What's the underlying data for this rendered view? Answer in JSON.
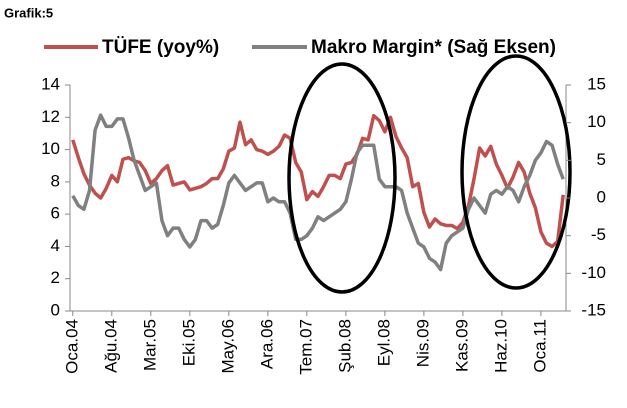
{
  "chart_data": {
    "type": "line",
    "title": "Grafik:5",
    "categories": [
      "Oca.04",
      null,
      null,
      null,
      null,
      null,
      null,
      "Ağu.04",
      null,
      null,
      null,
      null,
      null,
      null,
      "Mar.05",
      null,
      null,
      null,
      null,
      null,
      null,
      "Eki.05",
      null,
      null,
      null,
      null,
      null,
      null,
      "May.06",
      null,
      null,
      null,
      null,
      null,
      null,
      "Ara.06",
      null,
      null,
      null,
      null,
      null,
      null,
      "Tem.07",
      null,
      null,
      null,
      null,
      null,
      null,
      "Şub.08",
      null,
      null,
      null,
      null,
      null,
      null,
      "Eyl.08",
      null,
      null,
      null,
      null,
      null,
      null,
      "Nis.09",
      null,
      null,
      null,
      null,
      null,
      null,
      "Kas.09",
      null,
      null,
      null,
      null,
      null,
      null,
      "Haz.10",
      null,
      null,
      null,
      null,
      null,
      null,
      "Oca.11",
      null,
      null,
      null,
      null
    ],
    "series": [
      {
        "name": "TÜFE (yoy%)",
        "color": "#c0504d",
        "axis": "y",
        "values": [
          10.6,
          9.5,
          8.5,
          7.8,
          7.3,
          7.0,
          7.6,
          8.4,
          8.0,
          9.4,
          9.5,
          9.3,
          9.2,
          8.7,
          7.9,
          8.2,
          8.7,
          9.0,
          7.8,
          7.9,
          8.0,
          7.5,
          7.6,
          7.7,
          7.9,
          8.2,
          8.2,
          8.8,
          9.9,
          10.1,
          11.7,
          10.3,
          10.6,
          10.0,
          9.9,
          9.7,
          9.9,
          10.2,
          10.9,
          10.7,
          9.2,
          8.6,
          6.9,
          7.4,
          7.1,
          7.7,
          8.4,
          8.4,
          8.2,
          9.1,
          9.2,
          9.7,
          10.7,
          10.6,
          12.1,
          11.8,
          11.1,
          12.0,
          10.8,
          10.1,
          9.5,
          7.7,
          7.9,
          6.1,
          5.2,
          5.7,
          5.4,
          5.3,
          5.3,
          5.1,
          5.5,
          6.5,
          8.2,
          10.1,
          9.6,
          10.2,
          9.1,
          8.4,
          7.6,
          8.3,
          9.2,
          8.6,
          7.3,
          6.4,
          4.9,
          4.2,
          4.0,
          4.3,
          7.2
        ]
      },
      {
        "name": "Makro Margin* (Sağ Eksen)",
        "color": "#808080",
        "axis": "y2",
        "values": [
          0.3,
          -1,
          -1.5,
          1,
          9,
          11,
          9.5,
          9.5,
          10.5,
          10.5,
          8,
          5,
          3,
          1,
          1.5,
          2,
          -3,
          -5,
          -4,
          -4,
          -5.5,
          -6.5,
          -5.5,
          -3,
          -3,
          -4,
          -3.5,
          -1,
          2,
          3,
          2,
          1,
          1.5,
          2,
          2,
          -0.5,
          0,
          -0.5,
          -0.5,
          -2,
          -5.5,
          -5.5,
          -5,
          -4,
          -2.5,
          -3,
          -2.5,
          -2,
          -1.5,
          -0.5,
          2.5,
          6,
          7,
          7,
          7,
          2.5,
          1.5,
          1.5,
          1.5,
          1,
          -2,
          -4,
          -6,
          -6.5,
          -8,
          -8.5,
          -9.5,
          -6,
          -5,
          -4.5,
          -4,
          -1.5,
          0,
          -1,
          -2,
          0.5,
          1,
          0.5,
          1.5,
          1,
          -0.5,
          1.5,
          3,
          5,
          6,
          7.5,
          7,
          4.5,
          2.5
        ]
      }
    ],
    "ylim": [
      0,
      14
    ],
    "yticks": [
      0,
      2,
      4,
      6,
      8,
      10,
      12,
      14
    ],
    "y2lim": [
      -15,
      15
    ],
    "y2ticks": [
      -15,
      -10,
      -5,
      0,
      5,
      10,
      15
    ]
  }
}
